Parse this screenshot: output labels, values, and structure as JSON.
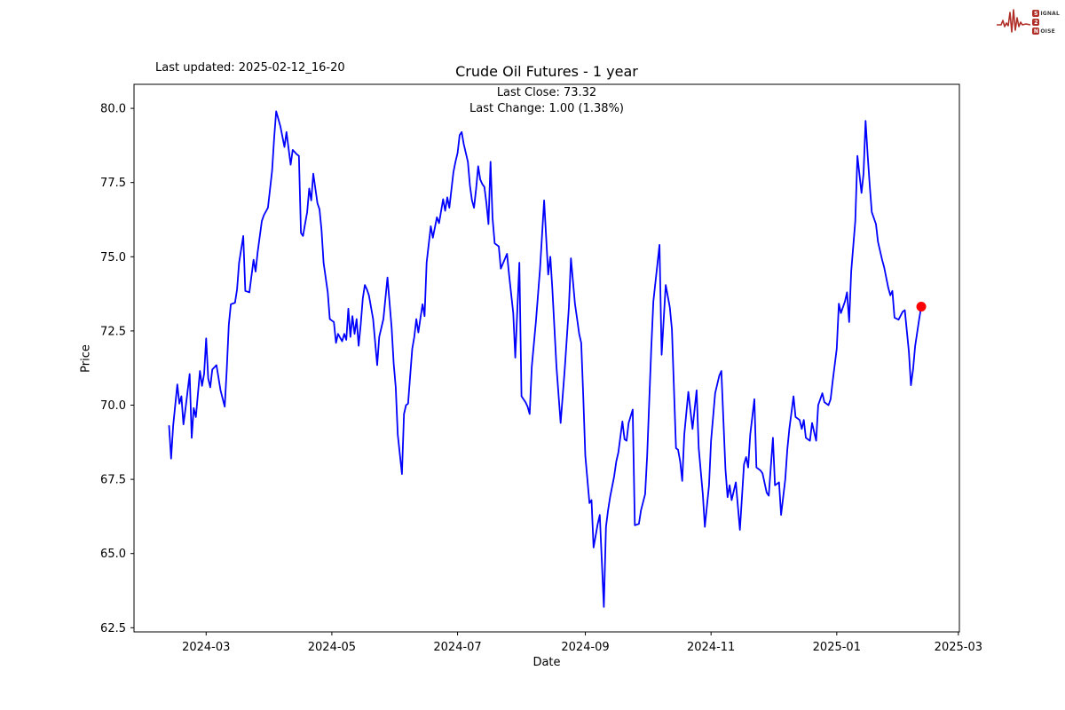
{
  "header": {
    "last_updated": "Last updated: 2025-02-12_16-20",
    "title": "Crude Oil Futures - 1 year",
    "annotation_line1": "Last Close: 73.32",
    "annotation_line2": "Last Change: 1.00 (1.38%)"
  },
  "logo": {
    "signal_initial": "S",
    "signal_rest": "IGNAL",
    "middle": "2",
    "noise_initial": "N",
    "noise_rest": "OISE",
    "accent_color": "#b03029"
  },
  "chart_data": {
    "type": "line",
    "title": "Crude Oil Futures - 1 year",
    "xlabel": "Date",
    "ylabel": "Price",
    "line_color": "#0000ff",
    "last_point_color": "#ff0000",
    "last_close": 73.32,
    "last_change_text": "1.00 (1.38%)",
    "series_start_date": "2024-02-12",
    "x_axis": {
      "min_day": -17,
      "max_day": 383.5,
      "ticks": [
        {
          "day": 18,
          "label": "2024-03"
        },
        {
          "day": 79,
          "label": "2024-05"
        },
        {
          "day": 140,
          "label": "2024-07"
        },
        {
          "day": 202,
          "label": "2024-09"
        },
        {
          "day": 263,
          "label": "2024-11"
        },
        {
          "day": 324,
          "label": "2025-01"
        },
        {
          "day": 383,
          "label": "2025-03"
        }
      ]
    },
    "y_axis": {
      "min": 62.36,
      "max": 80.81,
      "ticks": [
        62.5,
        65.0,
        67.5,
        70.0,
        72.5,
        75.0,
        77.5,
        80.0
      ]
    },
    "points_day_price": [
      [
        0,
        69.3
      ],
      [
        1,
        68.2
      ],
      [
        2,
        69.3
      ],
      [
        4,
        70.7
      ],
      [
        5,
        70.05
      ],
      [
        6,
        70.3
      ],
      [
        7,
        69.35
      ],
      [
        8,
        69.9
      ],
      [
        10,
        71.05
      ],
      [
        11,
        68.9
      ],
      [
        12,
        69.9
      ],
      [
        13,
        69.6
      ],
      [
        15,
        71.15
      ],
      [
        16,
        70.65
      ],
      [
        17,
        71.05
      ],
      [
        18,
        72.25
      ],
      [
        19,
        70.9
      ],
      [
        20,
        70.6
      ],
      [
        21,
        71.2
      ],
      [
        23,
        71.35
      ],
      [
        25,
        70.5
      ],
      [
        27,
        69.95
      ],
      [
        28,
        71.2
      ],
      [
        29,
        72.7
      ],
      [
        30,
        73.4
      ],
      [
        32,
        73.45
      ],
      [
        33,
        73.9
      ],
      [
        34,
        74.8
      ],
      [
        36,
        75.7
      ],
      [
        37,
        73.85
      ],
      [
        39,
        73.8
      ],
      [
        41,
        74.9
      ],
      [
        42,
        74.5
      ],
      [
        43,
        75.15
      ],
      [
        45,
        76.2
      ],
      [
        46,
        76.4
      ],
      [
        48,
        76.65
      ],
      [
        50,
        77.9
      ],
      [
        51,
        79.0
      ],
      [
        52,
        79.9
      ],
      [
        54,
        79.4
      ],
      [
        56,
        78.7
      ],
      [
        57,
        79.2
      ],
      [
        59,
        78.1
      ],
      [
        60,
        78.6
      ],
      [
        62,
        78.45
      ],
      [
        63,
        78.4
      ],
      [
        64,
        75.8
      ],
      [
        65,
        75.7
      ],
      [
        66,
        76.1
      ],
      [
        67,
        76.5
      ],
      [
        68,
        77.3
      ],
      [
        69,
        76.9
      ],
      [
        70,
        77.8
      ],
      [
        72,
        76.8
      ],
      [
        73,
        76.6
      ],
      [
        74,
        75.9
      ],
      [
        75,
        74.8
      ],
      [
        77,
        73.8
      ],
      [
        78,
        72.9
      ],
      [
        79,
        72.85
      ],
      [
        80,
        72.8
      ],
      [
        81,
        72.1
      ],
      [
        82,
        72.4
      ],
      [
        84,
        72.15
      ],
      [
        85,
        72.4
      ],
      [
        86,
        72.2
      ],
      [
        87,
        73.25
      ],
      [
        88,
        72.3
      ],
      [
        89,
        73.0
      ],
      [
        90,
        72.4
      ],
      [
        91,
        72.9
      ],
      [
        92,
        72.0
      ],
      [
        93,
        72.7
      ],
      [
        94,
        73.6
      ],
      [
        95,
        74.05
      ],
      [
        96,
        73.9
      ],
      [
        97,
        73.7
      ],
      [
        99,
        72.9
      ],
      [
        101,
        71.35
      ],
      [
        102,
        72.3
      ],
      [
        104,
        72.9
      ],
      [
        105,
        73.6
      ],
      [
        106,
        74.3
      ],
      [
        108,
        72.6
      ],
      [
        109,
        71.4
      ],
      [
        110,
        70.6
      ],
      [
        111,
        69.0
      ],
      [
        113,
        67.68
      ],
      [
        114,
        69.7
      ],
      [
        115,
        70.0
      ],
      [
        116,
        70.05
      ],
      [
        117,
        71.0
      ],
      [
        118,
        71.9
      ],
      [
        119,
        72.3
      ],
      [
        120,
        72.9
      ],
      [
        121,
        72.45
      ],
      [
        122,
        72.95
      ],
      [
        123,
        73.4
      ],
      [
        124,
        73.0
      ],
      [
        125,
        74.8
      ],
      [
        127,
        76.03
      ],
      [
        128,
        75.64
      ],
      [
        130,
        76.33
      ],
      [
        131,
        76.13
      ],
      [
        133,
        76.94
      ],
      [
        134,
        76.55
      ],
      [
        135,
        77.0
      ],
      [
        136,
        76.65
      ],
      [
        138,
        77.85
      ],
      [
        139,
        78.2
      ],
      [
        140,
        78.5
      ],
      [
        141,
        79.1
      ],
      [
        142,
        79.2
      ],
      [
        143,
        78.8
      ],
      [
        145,
        78.2
      ],
      [
        146,
        77.4
      ],
      [
        147,
        76.9
      ],
      [
        148,
        76.65
      ],
      [
        149,
        77.3
      ],
      [
        150,
        78.05
      ],
      [
        151,
        77.6
      ],
      [
        152,
        77.45
      ],
      [
        153,
        77.35
      ],
      [
        154,
        76.8
      ],
      [
        155,
        76.1
      ],
      [
        156,
        78.2
      ],
      [
        157,
        76.3
      ],
      [
        158,
        75.45
      ],
      [
        160,
        75.35
      ],
      [
        161,
        74.6
      ],
      [
        164,
        75.1
      ],
      [
        165,
        74.4
      ],
      [
        167,
        73.1
      ],
      [
        168,
        71.6
      ],
      [
        170,
        74.8
      ],
      [
        171,
        70.3
      ],
      [
        173,
        70.1
      ],
      [
        174,
        69.95
      ],
      [
        175,
        69.7
      ],
      [
        176,
        71.3
      ],
      [
        178,
        72.8
      ],
      [
        180,
        74.6
      ],
      [
        182,
        76.9
      ],
      [
        184,
        74.4
      ],
      [
        185,
        75.0
      ],
      [
        186,
        73.9
      ],
      [
        187,
        72.6
      ],
      [
        188,
        71.3
      ],
      [
        190,
        69.4
      ],
      [
        192,
        71.2
      ],
      [
        194,
        73.3
      ],
      [
        195,
        74.95
      ],
      [
        197,
        73.4
      ],
      [
        198,
        72.9
      ],
      [
        199,
        72.4
      ],
      [
        200,
        72.1
      ],
      [
        201,
        70.3
      ],
      [
        202,
        68.3
      ],
      [
        204,
        66.7
      ],
      [
        205,
        66.8
      ],
      [
        206,
        65.2
      ],
      [
        208,
        66.0
      ],
      [
        209,
        66.3
      ],
      [
        211,
        63.2
      ],
      [
        212,
        65.9
      ],
      [
        213,
        66.45
      ],
      [
        214,
        66.9
      ],
      [
        216,
        67.6
      ],
      [
        217,
        68.1
      ],
      [
        218,
        68.4
      ],
      [
        220,
        69.45
      ],
      [
        221,
        68.85
      ],
      [
        222,
        68.8
      ],
      [
        223,
        69.4
      ],
      [
        225,
        69.85
      ],
      [
        226,
        65.95
      ],
      [
        228,
        66.0
      ],
      [
        229,
        66.45
      ],
      [
        231,
        67.0
      ],
      [
        232,
        68.3
      ],
      [
        234,
        71.9
      ],
      [
        235,
        73.5
      ],
      [
        238,
        75.4
      ],
      [
        239,
        71.7
      ],
      [
        241,
        74.05
      ],
      [
        243,
        73.3
      ],
      [
        244,
        72.55
      ],
      [
        246,
        68.55
      ],
      [
        247,
        68.5
      ],
      [
        248,
        68.1
      ],
      [
        249,
        67.45
      ],
      [
        250,
        69.0
      ],
      [
        252,
        70.45
      ],
      [
        254,
        69.2
      ],
      [
        256,
        70.5
      ],
      [
        257,
        68.55
      ],
      [
        259,
        67.0
      ],
      [
        260,
        65.9
      ],
      [
        262,
        67.3
      ],
      [
        263,
        68.8
      ],
      [
        265,
        70.4
      ],
      [
        267,
        71.0
      ],
      [
        268,
        71.15
      ],
      [
        270,
        67.85
      ],
      [
        271,
        66.9
      ],
      [
        272,
        67.3
      ],
      [
        273,
        66.8
      ],
      [
        275,
        67.4
      ],
      [
        277,
        65.8
      ],
      [
        279,
        68.0
      ],
      [
        280,
        68.25
      ],
      [
        281,
        67.9
      ],
      [
        282,
        69.0
      ],
      [
        284,
        70.2
      ],
      [
        285,
        67.9
      ],
      [
        287,
        67.8
      ],
      [
        288,
        67.7
      ],
      [
        290,
        67.05
      ],
      [
        291,
        66.95
      ],
      [
        293,
        68.9
      ],
      [
        294,
        67.3
      ],
      [
        296,
        67.4
      ],
      [
        297,
        66.3
      ],
      [
        299,
        67.5
      ],
      [
        300,
        68.5
      ],
      [
        301,
        69.2
      ],
      [
        303,
        70.3
      ],
      [
        304,
        69.6
      ],
      [
        306,
        69.5
      ],
      [
        307,
        69.2
      ],
      [
        308,
        69.5
      ],
      [
        309,
        68.9
      ],
      [
        311,
        68.8
      ],
      [
        312,
        69.4
      ],
      [
        314,
        68.8
      ],
      [
        315,
        70.0
      ],
      [
        317,
        70.4
      ],
      [
        318,
        70.1
      ],
      [
        320,
        70.0
      ],
      [
        321,
        70.2
      ],
      [
        322,
        70.8
      ],
      [
        324,
        71.9
      ],
      [
        325,
        73.42
      ],
      [
        326,
        73.1
      ],
      [
        328,
        73.5
      ],
      [
        329,
        73.8
      ],
      [
        330,
        72.8
      ],
      [
        331,
        74.5
      ],
      [
        333,
        76.2
      ],
      [
        334,
        78.4
      ],
      [
        336,
        77.15
      ],
      [
        337,
        77.8
      ],
      [
        338,
        79.58
      ],
      [
        339,
        78.4
      ],
      [
        340,
        77.4
      ],
      [
        341,
        76.5
      ],
      [
        343,
        76.1
      ],
      [
        344,
        75.5
      ],
      [
        346,
        74.9
      ],
      [
        347,
        74.65
      ],
      [
        349,
        73.95
      ],
      [
        350,
        73.7
      ],
      [
        351,
        73.85
      ],
      [
        352,
        72.95
      ],
      [
        354,
        72.88
      ],
      [
        356,
        73.15
      ],
      [
        357,
        73.2
      ],
      [
        359,
        71.8
      ],
      [
        360,
        70.67
      ],
      [
        361,
        71.2
      ],
      [
        362,
        71.98
      ],
      [
        364,
        72.9
      ],
      [
        365,
        73.32
      ]
    ]
  }
}
